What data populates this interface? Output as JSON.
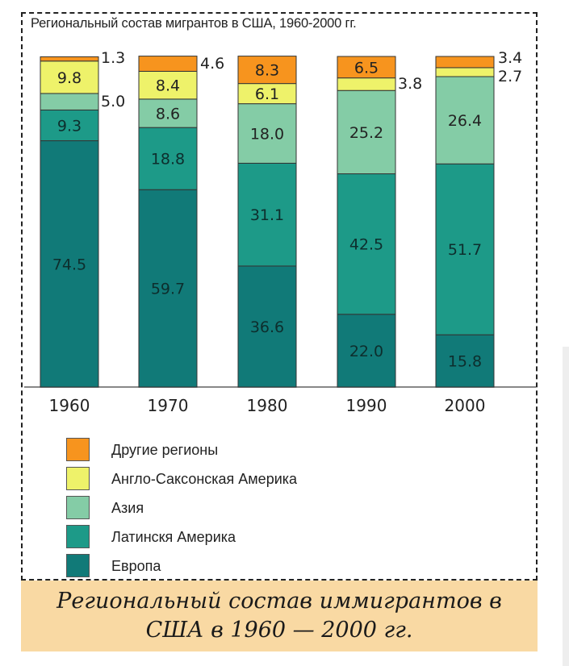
{
  "chart_data": {
    "type": "bar",
    "stacked": true,
    "title": "Региональный состав мигрантов в США, 1960-2000 гг.",
    "categories": [
      "1960",
      "1970",
      "1980",
      "1990",
      "2000"
    ],
    "ylim": [
      0,
      100
    ],
    "series": [
      {
        "name": "Европа",
        "color": "#117a78",
        "values": [
          74.5,
          59.7,
          36.6,
          22.0,
          15.8
        ],
        "labels": [
          "74.5",
          "59.7",
          "36.6",
          "22.0",
          "15.8"
        ]
      },
      {
        "name": "Латинскя Америка",
        "color": "#1d9a88",
        "values": [
          9.3,
          18.8,
          31.1,
          42.5,
          51.7
        ],
        "labels": [
          "9.3",
          "18.8",
          "31.1",
          "42.5",
          "51.7"
        ]
      },
      {
        "name": "Азия",
        "color": "#84cca6",
        "values": [
          5.0,
          8.6,
          18.0,
          25.2,
          26.4
        ],
        "labels": [
          "5.0",
          "8.6",
          "18.0",
          "25.2",
          "26.4"
        ]
      },
      {
        "name": "Англо-Саксонская Америка",
        "color": "#eef26a",
        "values": [
          9.8,
          8.4,
          6.1,
          3.8,
          2.7
        ],
        "labels": [
          "9.8",
          "8.4",
          "6.1",
          "3.8",
          "2.7"
        ]
      },
      {
        "name": "Другие регионы",
        "color": "#f7941e",
        "values": [
          1.3,
          4.6,
          8.3,
          6.5,
          3.4
        ],
        "labels": [
          "1.3",
          "4.6",
          "8.3",
          "6.5",
          "3.4"
        ]
      }
    ],
    "legend_placement": "bottom",
    "legend_order": [
      "Другие регионы",
      "Англо-Саксонская Америка",
      "Азия",
      "Латинскя Америка",
      "Европа"
    ]
  },
  "caption": {
    "line1": "Региональный состав иммигрантов в",
    "line2": "США в 1960 — 2000 гг."
  },
  "colors": {
    "caption_background": "#f9d9a3",
    "axis": "#888888",
    "bar_outline": "#333333"
  }
}
